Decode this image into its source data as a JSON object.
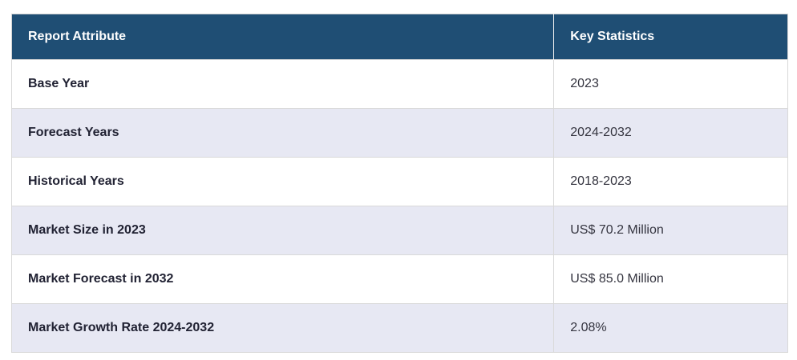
{
  "chart_data": {
    "type": "table",
    "columns": [
      "Report Attribute",
      "Key Statistics"
    ],
    "rows": [
      [
        "Base Year",
        "2023"
      ],
      [
        "Forecast Years",
        "2024-2032"
      ],
      [
        "Historical Years",
        "2018-2023"
      ],
      [
        "Market Size in 2023",
        "US$ 70.2 Million"
      ],
      [
        "Market Forecast in 2032",
        "US$ 85.0 Million"
      ],
      [
        "Market Growth Rate 2024-2032",
        "2.08%"
      ]
    ]
  },
  "table": {
    "header": {
      "attribute_label": "Report Attribute",
      "value_label": "Key Statistics"
    },
    "rows": [
      {
        "attribute": "Base Year",
        "value": "2023"
      },
      {
        "attribute": "Forecast Years",
        "value": "2024-2032"
      },
      {
        "attribute": "Historical Years",
        "value": "2018-2023"
      },
      {
        "attribute": "Market Size in 2023",
        "value": "US$ 70.2 Million"
      },
      {
        "attribute": "Market Forecast in 2032",
        "value": "US$ 85.0 Million"
      },
      {
        "attribute": "Market Growth Rate 2024-2032",
        "value": "2.08%"
      }
    ]
  },
  "colors": {
    "header_bg": "#1f4e74",
    "header_text": "#ffffff",
    "row_alt_bg": "#e7e8f3",
    "row_bg": "#ffffff",
    "border": "#d9d9d9",
    "attribute_text": "#212233",
    "value_text": "#34343f"
  }
}
